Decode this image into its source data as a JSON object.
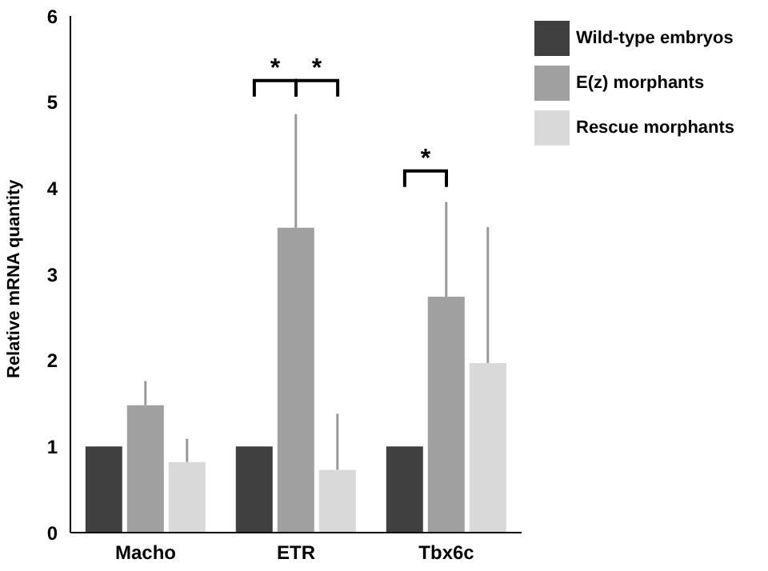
{
  "chart_data": {
    "type": "bar",
    "ylabel": "Relative mRNA quantity",
    "categories": [
      "Macho",
      "ETR",
      "Tbx6c"
    ],
    "series": [
      {
        "name": "Wild-type embryos",
        "color": "#404040",
        "values": [
          1,
          1,
          1
        ]
      },
      {
        "name": "E(z) morphants",
        "color": "#a0a0a0",
        "values": [
          1.48,
          3.54,
          2.74
        ],
        "errors": [
          [
            1.48,
            1.76
          ],
          [
            3.54,
            4.86
          ],
          [
            2.74,
            3.84
          ]
        ]
      },
      {
        "name": "Rescue morphants",
        "color": "#d9d9d9",
        "values": [
          0.82,
          0.73,
          1.97
        ],
        "errors": [
          [
            0.82,
            1.09
          ],
          [
            0.73,
            1.38
          ],
          [
            1.97,
            3.55
          ]
        ]
      }
    ],
    "ylim": [
      0,
      6
    ],
    "yticks": [
      0,
      1,
      2,
      3,
      4,
      5,
      6
    ],
    "grid": false,
    "legend": "top right",
    "annotations": [
      "*",
      "*",
      "*"
    ]
  }
}
